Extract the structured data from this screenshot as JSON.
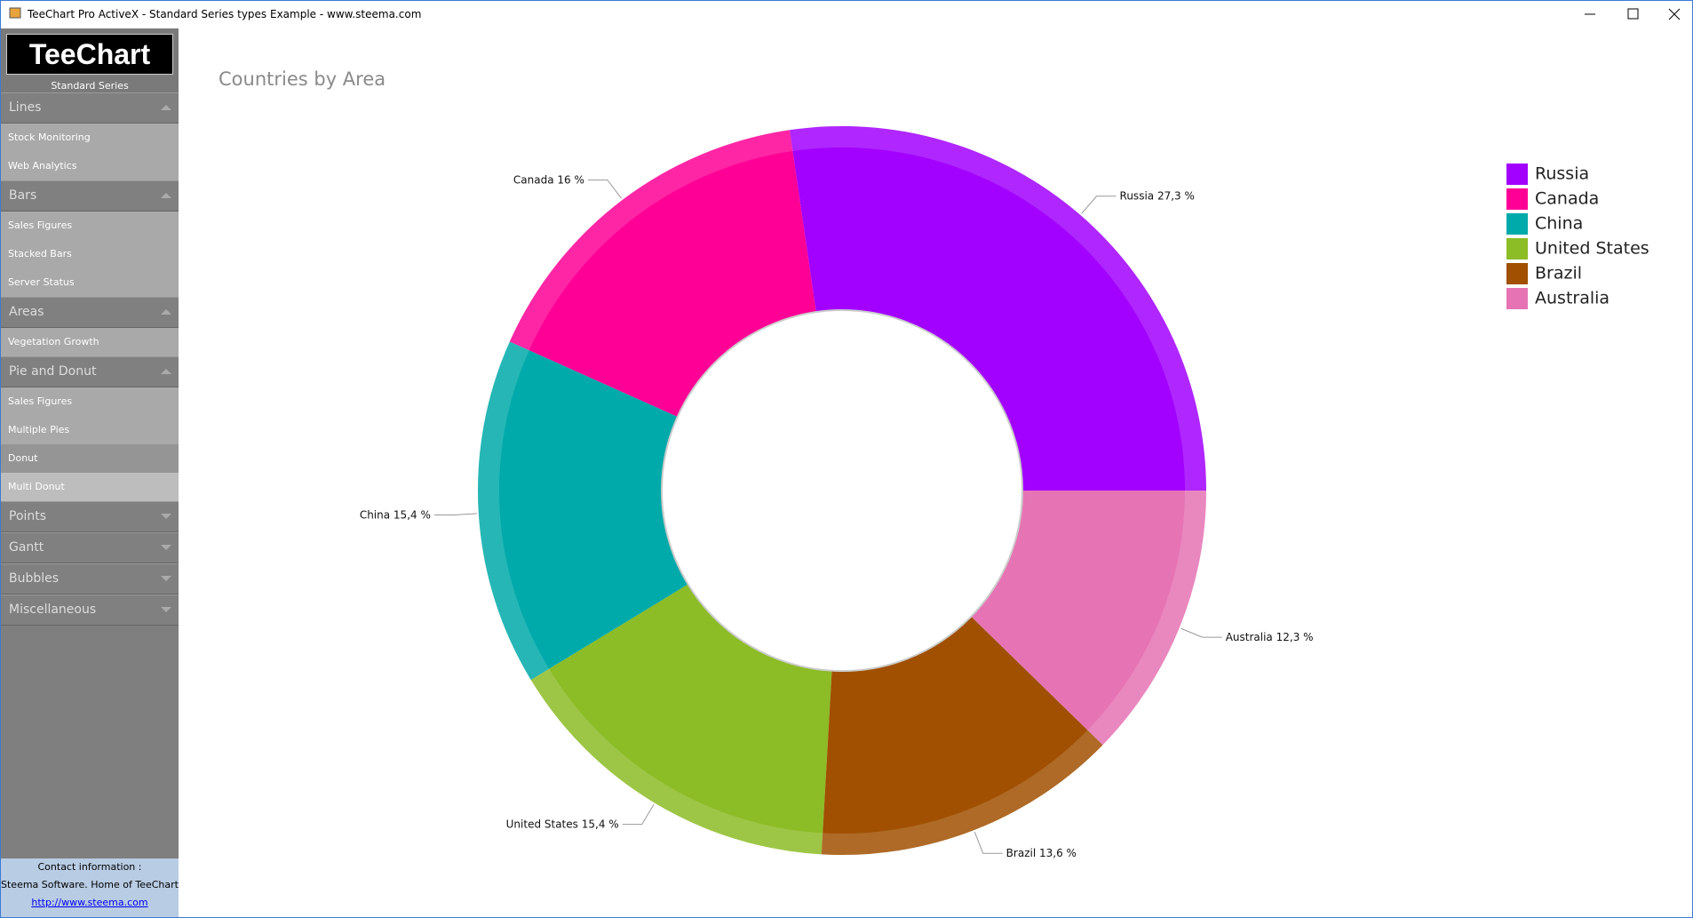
{
  "window": {
    "title": "TeeChart Pro ActiveX - Standard Series types Example - www.steema.com"
  },
  "sidebar": {
    "logo": "TeeChart",
    "subtitle": "Standard Series",
    "groups": [
      {
        "title": "Lines",
        "items": [
          "Stock Monitoring",
          "Web Analytics"
        ]
      },
      {
        "title": "Bars",
        "items": [
          "Sales Figures",
          "Stacked Bars",
          "Server Status"
        ]
      },
      {
        "title": "Areas",
        "items": [
          "Vegetation Growth"
        ]
      },
      {
        "title": "Pie and Donut",
        "items": [
          "Sales Figures",
          "Multiple Pies",
          "Donut",
          "Multi Donut"
        ]
      },
      {
        "title": "Points",
        "items": []
      },
      {
        "title": "Gantt",
        "items": []
      },
      {
        "title": "Bubbles",
        "items": []
      },
      {
        "title": "Miscellaneous",
        "items": []
      }
    ],
    "contact": {
      "heading": "Contact information :",
      "company": "Steema Software. Home of TeeChart",
      "link": "http://www.steema.com"
    }
  },
  "chart_data": {
    "type": "donut",
    "title": "Countries by Area",
    "categories": [
      "Russia",
      "Canada",
      "China",
      "United States",
      "Brazil",
      "Australia"
    ],
    "values": [
      27.3,
      16,
      15.4,
      15.4,
      13.6,
      12.3
    ],
    "value_labels": [
      "27,3 %",
      "16 %",
      "15,4 %",
      "15,4 %",
      "13,6 %",
      "12,3 %"
    ],
    "colors": [
      "#a200ff",
      "#ff0096",
      "#00aaaa",
      "#8cbc26",
      "#a05000",
      "#e673b4"
    ],
    "legend": "top-right"
  }
}
